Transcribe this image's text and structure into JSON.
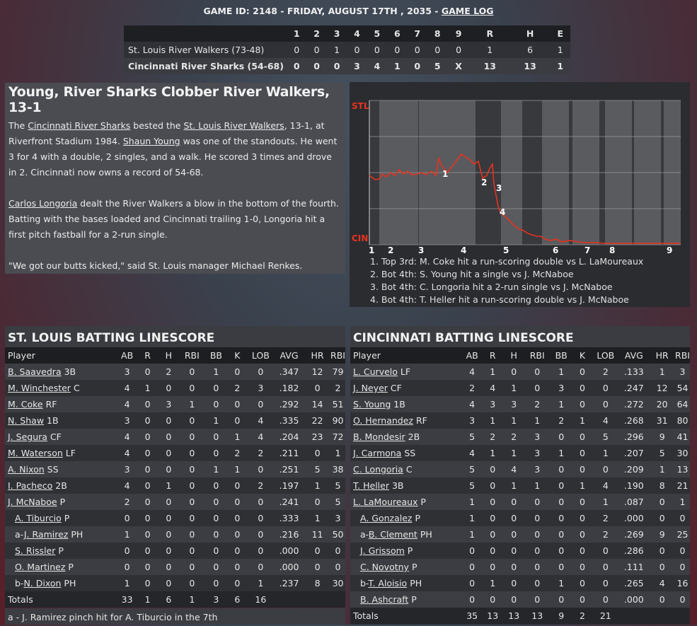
{
  "header": {
    "prefix": "GAME ID: 2148 - FRIDAY, AUGUST 17TH , 2035 - ",
    "game_log_link": "GAME LOG"
  },
  "linescore": {
    "columns": [
      "",
      "1",
      "2",
      "3",
      "4",
      "5",
      "6",
      "7",
      "8",
      "9",
      "R",
      "H",
      "E"
    ],
    "rows": [
      {
        "team": "St. Louis River Walkers (73-48)",
        "cells": [
          "0",
          "0",
          "1",
          "0",
          "0",
          "0",
          "0",
          "0",
          "0",
          "1",
          "6",
          "1"
        ]
      },
      {
        "team": "Cincinnati River Sharks (54-68)",
        "cells": [
          "0",
          "0",
          "0",
          "3",
          "4",
          "1",
          "0",
          "5",
          "X",
          "13",
          "13",
          "1"
        ]
      }
    ]
  },
  "recap": {
    "headline": "Young, River Sharks Clobber River Walkers, 13-1",
    "p1": {
      "t1": "The ",
      "link1": "Cincinnati River Sharks",
      "t2": " bested the ",
      "link2": "St. Louis River Walkers",
      "t3": ", 13-1, at Riverfront Stadium 1984. ",
      "link3": "Shaun Young",
      "t4": " was one of the standouts. He went 3 for 4 with a double, 2 singles, and a walk. He scored 3 times and drove in 2. Cincinnati now owns a record of 54-68."
    },
    "p2": {
      "link": "Carlos Longoria",
      "text": " dealt the River Walkers a blow in the bottom of the fourth. Batting with the bases loaded and Cincinnati trailing 1-0, Longoria hit a first pitch fastball for a 2-run single."
    },
    "p3": "\"We got our butts kicked,\" said St. Louis manager Michael Renkes."
  },
  "winprob": {
    "top_label": "STL",
    "bottom_label": "CIN",
    "line_color": "#e8321e",
    "label_color": "#e8321e",
    "innings": [
      "1",
      "2",
      "3",
      "4",
      "5",
      "6",
      "7",
      "8",
      "9"
    ],
    "markers": [
      "1",
      "2",
      "3",
      "4"
    ],
    "notes": [
      "1. Top 3rd: M. Coke hit a run-scoring double vs L. LaMoureaux",
      "2. Bot 4th: S. Young hit a single vs J. McNaboe",
      "3. Bot 4th: C. Longoria hit a 2-run single vs J. McNaboe",
      "4. Bot 4th: T. Heller hit a run-scoring double vs J. McNaboe"
    ]
  },
  "stl": {
    "title": "ST. LOUIS BATTING LINESCORE",
    "columns": [
      "Player",
      "AB",
      "R",
      "H",
      "RBI",
      "BB",
      "K",
      "LOB",
      "AVG",
      "HR",
      "RBI"
    ],
    "rows": [
      {
        "prefix": "",
        "name": "B. Saavedra",
        "pos": "3B",
        "sub": false,
        "stats": [
          "3",
          "0",
          "2",
          "0",
          "1",
          "0",
          "0",
          ".347",
          "12",
          "79"
        ]
      },
      {
        "prefix": "",
        "name": "M. Winchester",
        "pos": "C",
        "sub": false,
        "stats": [
          "4",
          "1",
          "0",
          "0",
          "0",
          "2",
          "3",
          ".182",
          "0",
          "2"
        ]
      },
      {
        "prefix": "",
        "name": "M. Coke",
        "pos": "RF",
        "sub": false,
        "stats": [
          "4",
          "0",
          "3",
          "1",
          "0",
          "0",
          "0",
          ".292",
          "14",
          "51"
        ]
      },
      {
        "prefix": "",
        "name": "N. Shaw",
        "pos": "1B",
        "sub": false,
        "stats": [
          "3",
          "0",
          "0",
          "0",
          "1",
          "0",
          "4",
          ".335",
          "22",
          "90"
        ]
      },
      {
        "prefix": "",
        "name": "J. Segura",
        "pos": "CF",
        "sub": false,
        "stats": [
          "4",
          "0",
          "0",
          "0",
          "0",
          "1",
          "4",
          ".204",
          "23",
          "72"
        ]
      },
      {
        "prefix": "",
        "name": "M. Waterson",
        "pos": "LF",
        "sub": false,
        "stats": [
          "4",
          "0",
          "0",
          "0",
          "0",
          "2",
          "2",
          ".211",
          "0",
          "1"
        ]
      },
      {
        "prefix": "",
        "name": "A. Nixon",
        "pos": "SS",
        "sub": false,
        "stats": [
          "3",
          "0",
          "0",
          "0",
          "1",
          "1",
          "0",
          ".251",
          "5",
          "38"
        ]
      },
      {
        "prefix": "",
        "name": "I. Pacheco",
        "pos": "2B",
        "sub": false,
        "stats": [
          "4",
          "0",
          "1",
          "0",
          "0",
          "0",
          "2",
          ".197",
          "1",
          "5"
        ]
      },
      {
        "prefix": "",
        "name": "J. McNaboe",
        "pos": "P",
        "sub": false,
        "stats": [
          "2",
          "0",
          "0",
          "0",
          "0",
          "0",
          "0",
          ".241",
          "0",
          "5"
        ]
      },
      {
        "prefix": "",
        "name": "A. Tiburcio",
        "pos": "P",
        "sub": true,
        "stats": [
          "0",
          "0",
          "0",
          "0",
          "0",
          "0",
          "0",
          ".333",
          "1",
          "3"
        ]
      },
      {
        "prefix": "a-",
        "name": "J. Ramirez",
        "pos": "PH",
        "sub": true,
        "stats": [
          "1",
          "0",
          "0",
          "0",
          "0",
          "0",
          "0",
          ".216",
          "11",
          "50"
        ]
      },
      {
        "prefix": "",
        "name": "S. Rissler",
        "pos": "P",
        "sub": true,
        "stats": [
          "0",
          "0",
          "0",
          "0",
          "0",
          "0",
          "0",
          ".000",
          "0",
          "0"
        ]
      },
      {
        "prefix": "",
        "name": "O. Martinez",
        "pos": "P",
        "sub": true,
        "stats": [
          "0",
          "0",
          "0",
          "0",
          "0",
          "0",
          "0",
          ".000",
          "0",
          "0"
        ]
      },
      {
        "prefix": "b-",
        "name": "N. Dixon",
        "pos": "PH",
        "sub": true,
        "stats": [
          "1",
          "0",
          "0",
          "0",
          "0",
          "0",
          "1",
          ".237",
          "8",
          "30"
        ]
      }
    ],
    "totals": {
      "label": "Totals",
      "stats": [
        "33",
        "1",
        "6",
        "1",
        "3",
        "6",
        "16",
        "",
        "",
        ""
      ]
    },
    "note": "a - J. Ramirez pinch hit for A. Tiburcio in the 7th"
  },
  "cin": {
    "title": "CINCINNATI BATTING LINESCORE",
    "columns": [
      "Player",
      "AB",
      "R",
      "H",
      "RBI",
      "BB",
      "K",
      "LOB",
      "AVG",
      "HR",
      "RBI"
    ],
    "rows": [
      {
        "prefix": "",
        "name": "L. Curvelo",
        "pos": "LF",
        "sub": false,
        "stats": [
          "4",
          "1",
          "0",
          "0",
          "1",
          "0",
          "2",
          ".133",
          "1",
          "3"
        ]
      },
      {
        "prefix": "",
        "name": "J. Neyer",
        "pos": "CF",
        "sub": false,
        "stats": [
          "2",
          "4",
          "1",
          "0",
          "3",
          "0",
          "0",
          ".247",
          "12",
          "54"
        ]
      },
      {
        "prefix": "",
        "name": "S. Young",
        "pos": "1B",
        "sub": false,
        "stats": [
          "4",
          "3",
          "3",
          "2",
          "1",
          "0",
          "0",
          ".272",
          "20",
          "64"
        ]
      },
      {
        "prefix": "",
        "name": "O. Hernandez",
        "pos": "RF",
        "sub": false,
        "stats": [
          "3",
          "1",
          "1",
          "1",
          "2",
          "1",
          "4",
          ".268",
          "31",
          "80"
        ]
      },
      {
        "prefix": "",
        "name": "B. Mondesir",
        "pos": "2B",
        "sub": false,
        "stats": [
          "5",
          "2",
          "2",
          "3",
          "0",
          "0",
          "5",
          ".296",
          "9",
          "41"
        ]
      },
      {
        "prefix": "",
        "name": "J. Carmona",
        "pos": "SS",
        "sub": false,
        "stats": [
          "4",
          "1",
          "1",
          "3",
          "1",
          "0",
          "1",
          ".207",
          "5",
          "30"
        ]
      },
      {
        "prefix": "",
        "name": "C. Longoria",
        "pos": "C",
        "sub": false,
        "stats": [
          "5",
          "0",
          "4",
          "3",
          "0",
          "0",
          "0",
          ".209",
          "1",
          "13"
        ]
      },
      {
        "prefix": "",
        "name": "T. Heller",
        "pos": "3B",
        "sub": false,
        "stats": [
          "5",
          "0",
          "1",
          "1",
          "0",
          "1",
          "4",
          ".190",
          "8",
          "21"
        ]
      },
      {
        "prefix": "",
        "name": "L. LaMoureaux",
        "pos": "P",
        "sub": false,
        "stats": [
          "1",
          "0",
          "0",
          "0",
          "0",
          "0",
          "1",
          ".087",
          "0",
          "1"
        ]
      },
      {
        "prefix": "",
        "name": "A. Gonzalez",
        "pos": "P",
        "sub": true,
        "stats": [
          "1",
          "0",
          "0",
          "0",
          "0",
          "0",
          "2",
          ".000",
          "0",
          "0"
        ]
      },
      {
        "prefix": "a-",
        "name": "B. Clement",
        "pos": "PH",
        "sub": true,
        "stats": [
          "1",
          "0",
          "0",
          "0",
          "0",
          "0",
          "2",
          ".269",
          "9",
          "25"
        ]
      },
      {
        "prefix": "",
        "name": "J. Grissom",
        "pos": "P",
        "sub": true,
        "stats": [
          "0",
          "0",
          "0",
          "0",
          "0",
          "0",
          "0",
          ".286",
          "0",
          "0"
        ]
      },
      {
        "prefix": "",
        "name": "C. Novotny",
        "pos": "P",
        "sub": true,
        "stats": [
          "0",
          "0",
          "0",
          "0",
          "0",
          "0",
          "0",
          ".111",
          "0",
          "0"
        ]
      },
      {
        "prefix": "b-",
        "name": "T. Aloisio",
        "pos": "PH",
        "sub": true,
        "stats": [
          "0",
          "1",
          "0",
          "0",
          "1",
          "0",
          "0",
          ".265",
          "4",
          "16"
        ]
      },
      {
        "prefix": "",
        "name": "B. Ashcraft",
        "pos": "P",
        "sub": true,
        "stats": [
          "0",
          "0",
          "0",
          "0",
          "0",
          "0",
          "0",
          ".000",
          "0",
          "0"
        ]
      }
    ],
    "totals": {
      "label": "Totals",
      "stats": [
        "35",
        "13",
        "13",
        "13",
        "9",
        "2",
        "21",
        "",
        "",
        ""
      ]
    }
  }
}
